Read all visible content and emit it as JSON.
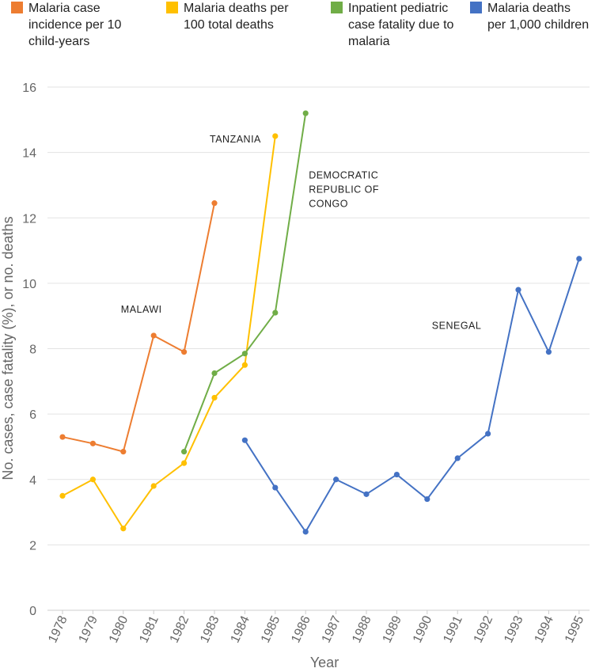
{
  "chart_data": {
    "type": "line",
    "title": "",
    "xlabel": "Year",
    "ylabel": "No. cases, case fatality (%), or no. deaths",
    "categories": [
      "1978",
      "1979",
      "1980",
      "1981",
      "1982",
      "1983",
      "1984",
      "1985",
      "1986",
      "1987",
      "1988",
      "1989",
      "1990",
      "1991",
      "1992",
      "1993",
      "1994",
      "1995"
    ],
    "ylim": [
      0,
      16
    ],
    "yticks": [
      0,
      2,
      4,
      6,
      8,
      10,
      12,
      14,
      16
    ],
    "grid": true,
    "legend_position": "top",
    "series": [
      {
        "name": "Malaria case incidence per 10 child-years",
        "legend_lines": [
          "Malaria case",
          "incidence per 10",
          "child-years"
        ],
        "color": "#ED7D31",
        "values": [
          5.3,
          5.1,
          4.85,
          8.4,
          7.9,
          12.45,
          null,
          null,
          null,
          null,
          null,
          null,
          null,
          null,
          null,
          null,
          null,
          null
        ]
      },
      {
        "name": "Malaria deaths per 100 total deaths",
        "legend_lines": [
          "Malaria deaths per",
          "100 total deaths"
        ],
        "color": "#FFC000",
        "values": [
          3.5,
          4.0,
          2.5,
          3.8,
          4.5,
          6.5,
          7.5,
          14.5,
          null,
          null,
          null,
          null,
          null,
          null,
          null,
          null,
          null,
          null
        ]
      },
      {
        "name": "Inpatient pediatric case fatality due to malaria",
        "legend_lines": [
          "Inpatient pediatric",
          "case fatality due to",
          "malaria"
        ],
        "color": "#70AD47",
        "values": [
          null,
          null,
          null,
          null,
          4.85,
          7.25,
          7.85,
          9.1,
          15.2,
          null,
          null,
          null,
          null,
          null,
          null,
          null,
          null,
          null
        ]
      },
      {
        "name": "Malaria deaths per 1,000 children",
        "legend_lines": [
          "Malaria deaths",
          "per 1,000 children"
        ],
        "color": "#4472C4",
        "values": [
          null,
          null,
          null,
          null,
          null,
          null,
          5.2,
          3.75,
          2.4,
          4.0,
          3.55,
          4.15,
          3.4,
          4.65,
          5.4,
          9.8,
          7.9,
          10.75
        ]
      }
    ],
    "annotations": [
      {
        "lines": [
          "MALAWI"
        ],
        "x": "1980",
        "y": 9.1
      },
      {
        "lines": [
          "TANZANIA"
        ],
        "x": "1983",
        "y": 14.3
      },
      {
        "lines": [
          "DEMOCRATIC",
          "REPUBLIC OF",
          "CONGO"
        ],
        "x": "1986",
        "y": 13.2
      },
      {
        "lines": [
          "SENEGAL"
        ],
        "x": "1990",
        "y": 8.6
      }
    ]
  }
}
